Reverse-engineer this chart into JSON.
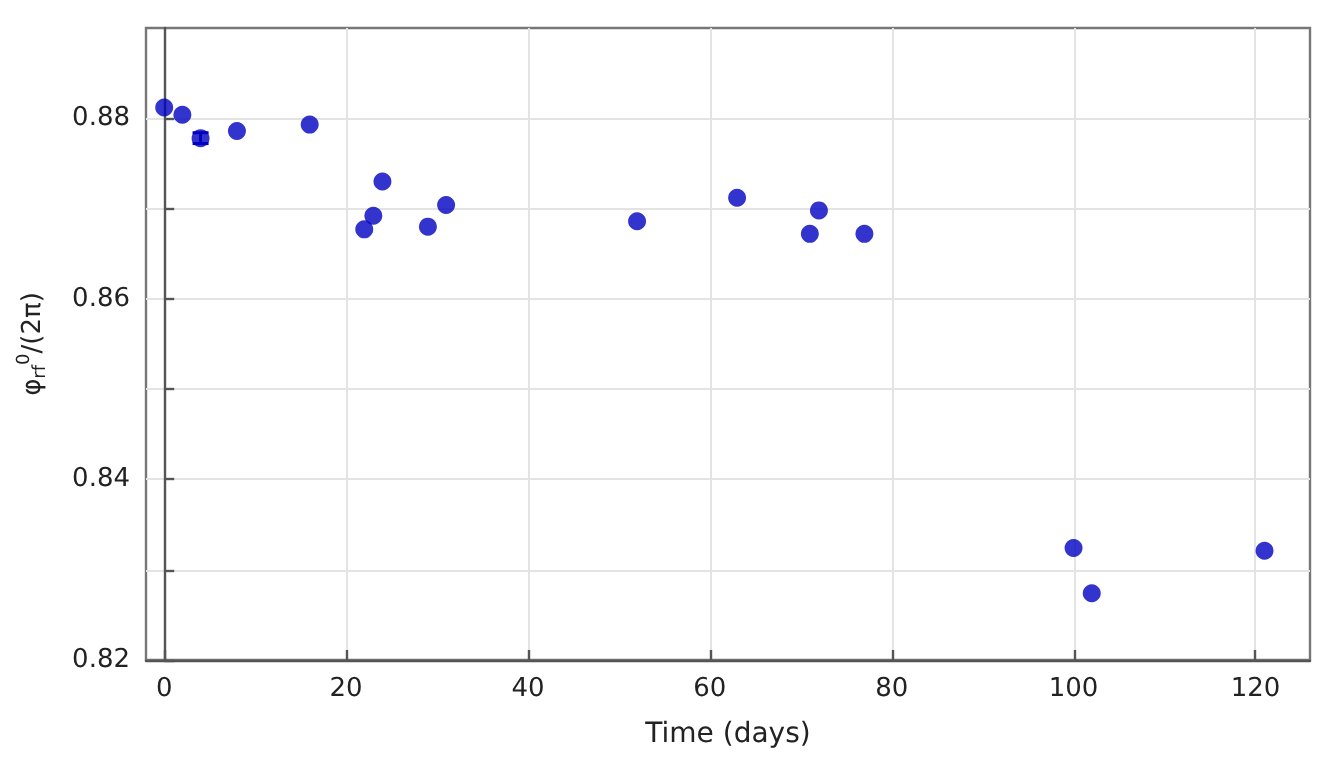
{
  "chart_data": {
    "type": "scatter",
    "xlabel": "Time (days)",
    "ylabel": "φ$_{rf}$$^{0}$/(2π)",
    "x": [
      0,
      2,
      4,
      8,
      16,
      22,
      23,
      24,
      29,
      31,
      52,
      63,
      71,
      72,
      77,
      100,
      102,
      121
    ],
    "series": [
      {
        "color": "#0000c0",
        "values": [
          0.8812,
          0.8804,
          0.8778,
          0.8786,
          0.8793,
          0.8677,
          0.8692,
          0.873,
          0.868,
          0.8704,
          0.8686,
          0.8712,
          0.8672,
          0.8698,
          0.8672,
          0.8324,
          0.8274,
          0.8321
        ],
        "errors": [
          null,
          null,
          0.0006,
          null,
          null,
          null,
          null,
          null,
          null,
          null,
          null,
          null,
          null,
          null,
          null,
          null,
          null,
          null
        ]
      }
    ],
    "xlim": [
      -2,
      126
    ],
    "xticks": [
      0,
      20,
      40,
      60,
      80,
      100,
      120
    ],
    "ylim": [
      0.82,
      0.89
    ],
    "yticks": [
      0.82,
      {
        "value": 0.83,
        "label": null
      },
      0.84,
      {
        "value": 0.85,
        "label": null
      },
      0.86,
      {
        "value": 0.87,
        "label": null
      },
      0.88
    ],
    "grid": true,
    "marker": "circle"
  }
}
